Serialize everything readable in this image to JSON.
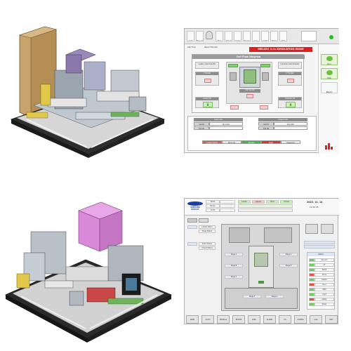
{
  "top_left": {
    "label": "machine-render-1"
  },
  "hmi1": {
    "title": "Cell Flow Diagram",
    "mode_banner": "MELSEC is in SIMULATION MODE",
    "toolbar_buttons": [
      "Auto",
      "Manual",
      "Stop",
      "Reset",
      "Alarm",
      "Recipe",
      "Log",
      "Config",
      "Home",
      "Help"
    ],
    "breadcrumb": "Cell Flow",
    "left_label": "Cell Flow",
    "right_label": "Report Monitor",
    "side_buttons": [
      "Run",
      "Stop",
      "Report"
    ],
    "stations": {
      "load": "Loader (Cell) Transfer",
      "unload": "Unloader (Cell) Transfer",
      "left_buffer": "L Transfer",
      "right_buffer": "R Transfer",
      "left_lift": "Loader Lift",
      "right_lift": "Unloader Lift",
      "center": "Cell Transfer"
    },
    "counters": {
      "left": "0",
      "right": "0"
    },
    "bottom_headers": [
      "Input Cell",
      "Output Cell"
    ],
    "input_cells": [
      "Cell ID",
      "PLC-001",
      "Cell No"
    ],
    "output_cells": [
      "Cell ID",
      "PLC-002",
      "Cell No"
    ],
    "status_bar": [
      "Loader Mode",
      "Running",
      "Normal",
      "Fault",
      "Reserved"
    ]
  },
  "bottom_left": {
    "label": "machine-render-2"
  },
  "hmi2": {
    "brand": "SAMSUNG DISPLAY",
    "header_left": [
      "Model",
      "Recipe",
      "Lot ID",
      "Operator"
    ],
    "header_right_title": "2023. 11. 14",
    "header_right_sub": "10:32:45",
    "top_row_status": [
      "Loader",
      "Inspect",
      "Bond",
      "Unload"
    ],
    "left_list": [
      "Loader Status",
      "Stage Status",
      "Robot Status",
      "Unload Status"
    ],
    "stage_labels": [
      "Stage A",
      "Stage B",
      "Stage C",
      "Stage D",
      "Stage E",
      "Stage F",
      "Stage G"
    ],
    "right_panel_title": "Status",
    "right_panel_items": [
      "Vacuum",
      "Air",
      "Robot",
      "Servo",
      "Heater",
      "Door",
      "EMO",
      "Light",
      "Safety",
      "Power"
    ],
    "bottom_buttons": [
      "MAIN",
      "AUTO",
      "MANUAL",
      "RECIPE",
      "DATA",
      "ALARM",
      "I/O",
      "CONFIG",
      "LOG",
      "EXIT"
    ]
  }
}
